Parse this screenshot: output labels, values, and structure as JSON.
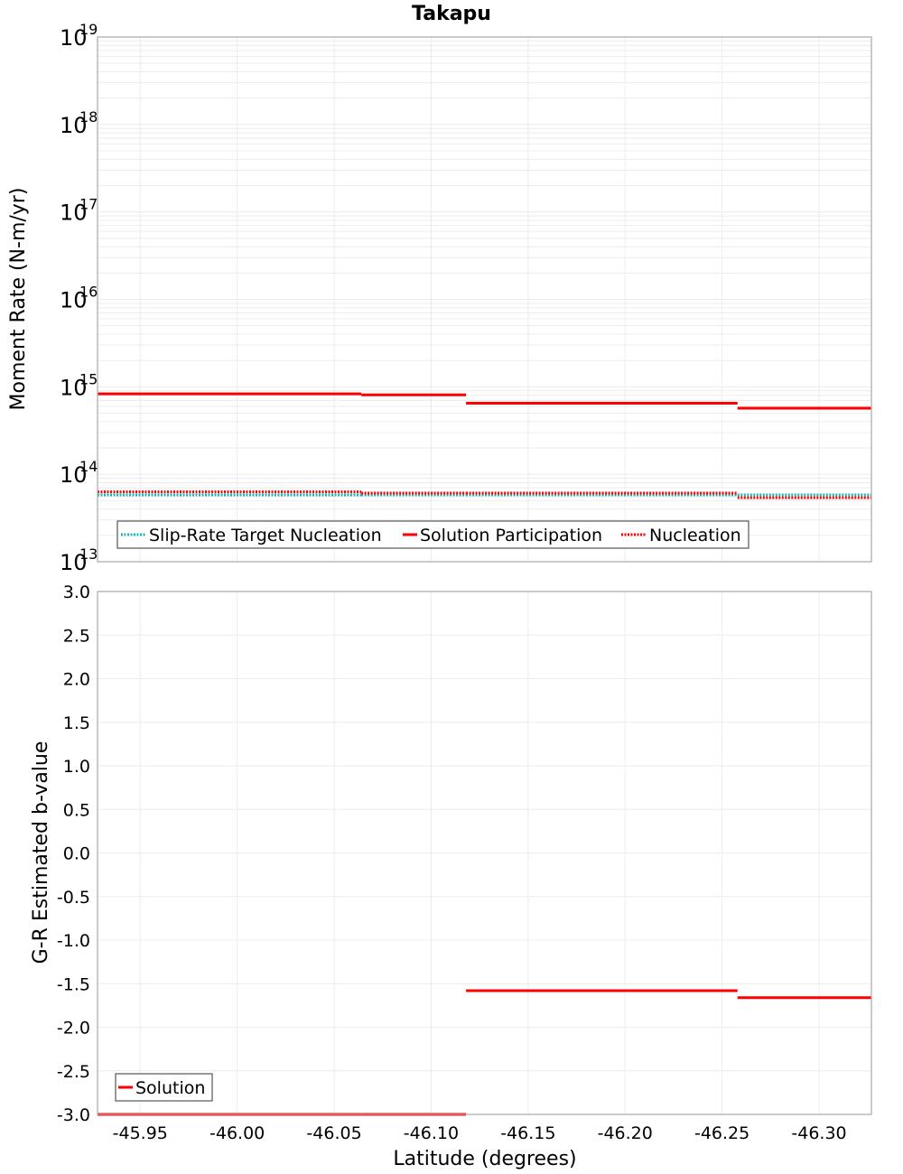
{
  "chart_data": [
    {
      "type": "line",
      "title": "Takapu",
      "xlabel": "Latitude (degrees)",
      "ylabel": "Moment Rate (N-m/yr)",
      "yscale": "log",
      "ylim": [
        10000000000000.0,
        1e+19
      ],
      "xlim": [
        -45.928,
        -46.327
      ],
      "x_ticks": [
        "-45.95",
        "-46.00",
        "-46.05",
        "-46.10",
        "-46.15",
        "-46.20",
        "-46.25",
        "-46.30"
      ],
      "y_ticks": [
        {
          "base": "10",
          "exp": "19"
        },
        {
          "base": "10",
          "exp": "18"
        },
        {
          "base": "10",
          "exp": "17"
        },
        {
          "base": "10",
          "exp": "16"
        },
        {
          "base": "10",
          "exp": "15"
        },
        {
          "base": "10",
          "exp": "14"
        },
        {
          "base": "10",
          "exp": "13"
        }
      ],
      "grid": true,
      "legend_position": "lower-left",
      "step_edges": [
        -45.928,
        -46.064,
        -46.118,
        -46.258,
        -46.327
      ],
      "series": [
        {
          "name": "Slip-Rate Target Nucleation",
          "color": "#1fb5b5",
          "style": "dotted",
          "values": [
            58000000000000.0,
            58000000000000.0,
            58000000000000.0,
            58000000000000.0
          ]
        },
        {
          "name": "Solution Participation",
          "color": "#ff0000",
          "style": "solid",
          "values": [
            830000000000000.0,
            810000000000000.0,
            650000000000000.0,
            570000000000000.0
          ]
        },
        {
          "name": "Nucleation",
          "color": "#ff0000",
          "style": "dotted",
          "values": [
            63000000000000.0,
            61000000000000.0,
            61000000000000.0,
            54000000000000.0
          ]
        }
      ]
    },
    {
      "type": "line",
      "title": "",
      "xlabel": "Latitude (degrees)",
      "ylabel": "G-R Estimated b-value",
      "ylim": [
        -3.0,
        3.0
      ],
      "xlim": [
        -45.928,
        -46.327
      ],
      "x_ticks": [
        "-45.95",
        "-46.00",
        "-46.05",
        "-46.10",
        "-46.15",
        "-46.20",
        "-46.25",
        "-46.30"
      ],
      "y_ticks": [
        "3.0",
        "2.5",
        "2.0",
        "1.5",
        "1.0",
        "0.5",
        "0.0",
        "-0.5",
        "-1.0",
        "-1.5",
        "-2.0",
        "-2.5",
        "-3.0"
      ],
      "grid": true,
      "legend_position": "lower-left",
      "step_edges": [
        -45.928,
        -46.064,
        -46.118,
        -46.258,
        -46.327
      ],
      "series": [
        {
          "name": "Solution",
          "color": "#ff0000",
          "style": "solid",
          "values": [
            -3.0,
            -3.0,
            -1.58,
            -1.66
          ]
        }
      ]
    }
  ]
}
